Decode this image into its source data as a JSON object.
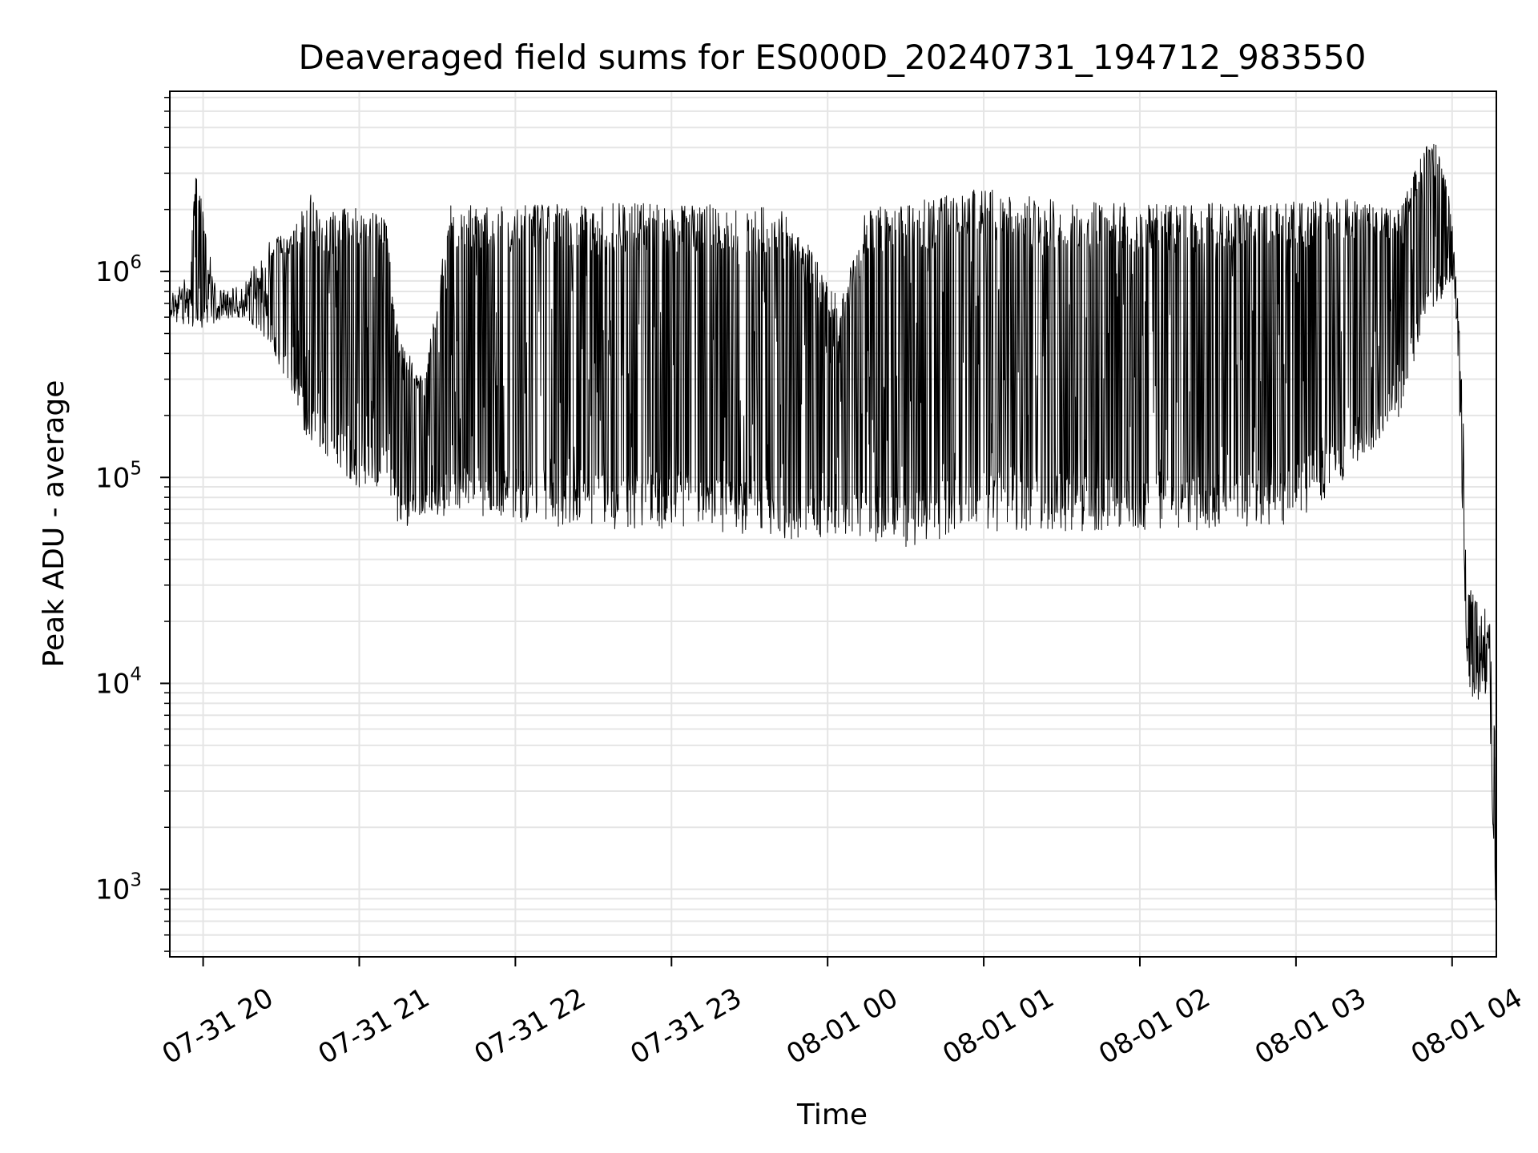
{
  "chart_data": {
    "type": "line",
    "title": "Deaveraged field sums for ES000D_20240731_194712_983550",
    "xlabel": "Time",
    "ylabel": "Peak ADU - average",
    "yscale": "log",
    "ylim": [
      470,
      7500000
    ],
    "xlim": [
      "2024-07-31 19:47:12",
      "2024-08-01 04:17:00"
    ],
    "grid": true,
    "x_ticks": [
      {
        "value": "2024-07-31 20:00",
        "label": "07-31 20"
      },
      {
        "value": "2024-07-31 21:00",
        "label": "07-31 21"
      },
      {
        "value": "2024-07-31 22:00",
        "label": "07-31 22"
      },
      {
        "value": "2024-07-31 23:00",
        "label": "07-31 23"
      },
      {
        "value": "2024-08-01 00:00",
        "label": "08-01 00"
      },
      {
        "value": "2024-08-01 01:00",
        "label": "08-01 01"
      },
      {
        "value": "2024-08-01 02:00",
        "label": "08-01 02"
      },
      {
        "value": "2024-08-01 03:00",
        "label": "08-01 03"
      },
      {
        "value": "2024-08-01 04:00",
        "label": "08-01 04"
      }
    ],
    "y_ticks": [
      {
        "value": 1000,
        "base": "10",
        "exp": "3"
      },
      {
        "value": 10000,
        "base": "10",
        "exp": "4"
      },
      {
        "value": 100000,
        "base": "10",
        "exp": "5"
      },
      {
        "value": 1000000,
        "base": "10",
        "exp": "6"
      }
    ],
    "series": [
      {
        "color": "#000000",
        "envelope": [
          {
            "t": "2024-07-31 19:47",
            "low": 600000,
            "high": 750000
          },
          {
            "t": "2024-07-31 19:55",
            "low": 520000,
            "high": 1000000
          },
          {
            "t": "2024-07-31 19:57",
            "low": 500000,
            "high": 3400000
          },
          {
            "t": "2024-07-31 20:05",
            "low": 560000,
            "high": 800000
          },
          {
            "t": "2024-07-31 20:15",
            "low": 600000,
            "high": 850000
          },
          {
            "t": "2024-07-31 20:25",
            "low": 450000,
            "high": 1400000
          },
          {
            "t": "2024-07-31 20:35",
            "low": 250000,
            "high": 1600000
          },
          {
            "t": "2024-07-31 20:40",
            "low": 150000,
            "high": 2700000
          },
          {
            "t": "2024-07-31 20:45",
            "low": 120000,
            "high": 1800000
          },
          {
            "t": "2024-07-31 20:55",
            "low": 90000,
            "high": 2100000
          },
          {
            "t": "2024-07-31 21:05",
            "low": 80000,
            "high": 2100000
          },
          {
            "t": "2024-07-31 21:10",
            "low": 100000,
            "high": 1900000
          },
          {
            "t": "2024-07-31 21:15",
            "low": 55000,
            "high": 500000
          },
          {
            "t": "2024-07-31 21:25",
            "low": 65000,
            "high": 300000
          },
          {
            "t": "2024-07-31 21:35",
            "low": 65000,
            "high": 2100000
          },
          {
            "t": "2024-07-31 22:00",
            "low": 60000,
            "high": 2100000
          },
          {
            "t": "2024-07-31 22:40",
            "low": 55000,
            "high": 2150000
          },
          {
            "t": "2024-07-31 23:15",
            "low": 55000,
            "high": 2150000
          },
          {
            "t": "2024-07-31 23:45",
            "low": 50000,
            "high": 2000000
          },
          {
            "t": "2024-08-01 00:05",
            "low": 50000,
            "high": 700000
          },
          {
            "t": "2024-08-01 00:15",
            "low": 50000,
            "high": 2100000
          },
          {
            "t": "2024-08-01 00:30",
            "low": 45000,
            "high": 2100000
          },
          {
            "t": "2024-08-01 00:55",
            "low": 55000,
            "high": 2600000
          },
          {
            "t": "2024-08-01 01:30",
            "low": 55000,
            "high": 2200000
          },
          {
            "t": "2024-08-01 02:00",
            "low": 55000,
            "high": 2150000
          },
          {
            "t": "2024-08-01 02:30",
            "low": 55000,
            "high": 2150000
          },
          {
            "t": "2024-08-01 03:00",
            "low": 60000,
            "high": 2200000
          },
          {
            "t": "2024-08-01 03:20",
            "low": 100000,
            "high": 2300000
          },
          {
            "t": "2024-08-01 03:40",
            "low": 200000,
            "high": 2000000
          },
          {
            "t": "2024-08-01 03:50",
            "low": 600000,
            "high": 4500000
          },
          {
            "t": "2024-08-01 03:55",
            "low": 700000,
            "high": 4000000
          },
          {
            "t": "2024-08-01 04:00",
            "low": 900000,
            "high": 2000000
          },
          {
            "t": "2024-08-01 04:02",
            "low": 500000,
            "high": 800000
          },
          {
            "t": "2024-08-01 04:04",
            "low": 60000,
            "high": 300000
          },
          {
            "t": "2024-08-01 04:06",
            "low": 9000,
            "high": 30000
          },
          {
            "t": "2024-08-01 04:10",
            "low": 8000,
            "high": 25000
          },
          {
            "t": "2024-08-01 04:14",
            "low": 9000,
            "high": 25000
          },
          {
            "t": "2024-08-01 04:17",
            "low": 600,
            "high": 5000
          }
        ]
      }
    ]
  }
}
